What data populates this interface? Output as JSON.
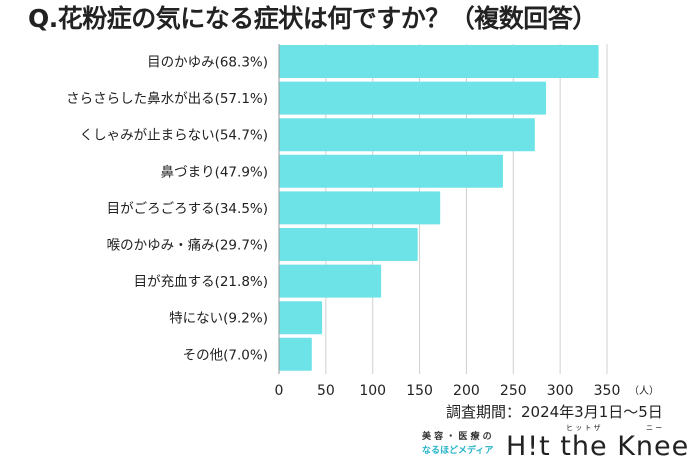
{
  "chart_data": {
    "type": "bar",
    "orientation": "horizontal",
    "title": "Q.花粉症の気になる症状は何ですか？（複数回答）",
    "categories": [
      "目のかゆみ(68.3%)",
      "さらさらした鼻水が出る(57.1%)",
      "くしゃみが止まらない(54.7%)",
      "鼻づまり(47.9%)",
      "目がごろごろする(34.5%)",
      "喉のかゆみ・痛み(29.7%)",
      "目が充血する(21.8%)",
      "特にない(9.2%)",
      "その他(7.0%)"
    ],
    "values": [
      341,
      285,
      273,
      239,
      172,
      148,
      109,
      46,
      35
    ],
    "xlim": [
      0,
      350
    ],
    "xticks": [
      "0",
      "50",
      "100",
      "150",
      "200",
      "250",
      "300",
      "350"
    ],
    "xunit": "（人）",
    "grid": true,
    "bar_color": "#6de3e8"
  },
  "footer": {
    "period": "調査期間：2024年3月1日〜5日",
    "logo": {
      "tagline_1": "美 容 ・ 医 療 の",
      "tagline_2": "なるほどメディア",
      "name": "H!t the Knee",
      "ruby_1": "ヒ ッ ト  ザ",
      "ruby_2": "ニ ー"
    }
  }
}
